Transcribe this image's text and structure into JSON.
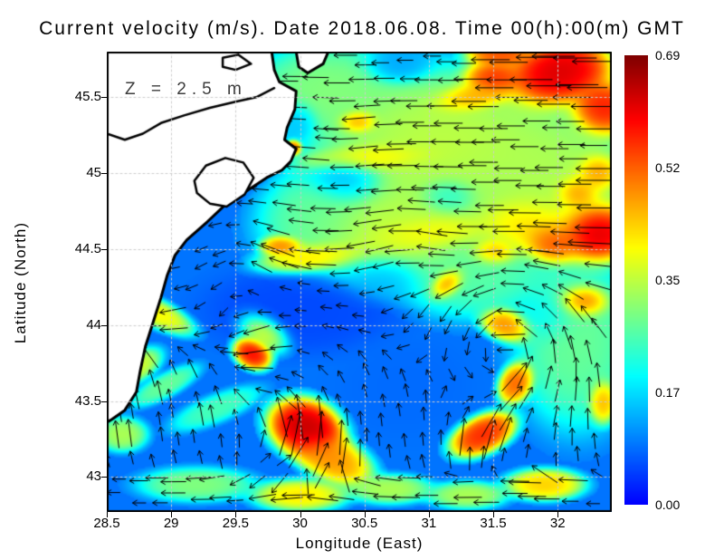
{
  "title": "Current velocity (m/s). Date 2018.06.08. Time 00(h):00(m) GMT",
  "annotation": "Z = 2.5 m",
  "axes": {
    "x": {
      "label": "Longitude (East)",
      "ticks": [
        "28.5",
        "29",
        "29.5",
        "30",
        "30.5",
        "31",
        "31.5",
        "32"
      ],
      "tick_values": [
        28.5,
        29,
        29.5,
        30,
        30.5,
        31,
        31.5,
        32
      ],
      "range": [
        28.5,
        32.42
      ]
    },
    "y": {
      "label": "Latitude (North)",
      "ticks": [
        "45.5",
        "45",
        "44.5",
        "44",
        "43.5",
        "43"
      ],
      "tick_values": [
        45.5,
        45,
        44.5,
        44,
        43.5,
        43
      ],
      "range": [
        42.77,
        45.8
      ]
    }
  },
  "colorbar": {
    "labels": [
      "0.69",
      "0.52",
      "0.35",
      "0.17",
      "0.00"
    ],
    "min": 0.0,
    "max": 0.69,
    "colormap": "jet"
  },
  "colors": {
    "land": "#ffffff",
    "coast": "#000000",
    "arrow": "#000000",
    "grid": "#cdcdcd",
    "frame": "#000000"
  },
  "chart_data": {
    "type": "heatmap",
    "subtype": "vector-field-over-heatmap",
    "title": "Current velocity (m/s). Date 2018.06.08. Time 00(h):00(m) GMT",
    "xlabel": "Longitude (East)",
    "ylabel": "Latitude (North)",
    "xlim": [
      28.5,
      32.42
    ],
    "ylim": [
      42.77,
      45.8
    ],
    "vlim": [
      0.0,
      0.69
    ],
    "grid": {
      "x": [
        29,
        29.5,
        30,
        30.5,
        31,
        31.5,
        32
      ],
      "y": [
        43,
        43.5,
        44,
        44.5,
        45,
        45.5
      ],
      "style": "dotted"
    },
    "base_value": 0.13,
    "hotspot_fields": [
      "lon",
      "lat",
      "rx_px",
      "ry_px",
      "rot_deg",
      "value_norm"
    ],
    "hotspots": [
      [
        31.1,
        45.2,
        130,
        75,
        0,
        0.52
      ],
      [
        30.7,
        44.62,
        110,
        55,
        0,
        0.52
      ],
      [
        31.95,
        44.95,
        95,
        80,
        0,
        0.5
      ],
      [
        30.2,
        45.55,
        75,
        45,
        0,
        0.45
      ],
      [
        32.15,
        43.9,
        60,
        85,
        0,
        0.42
      ],
      [
        31.35,
        44.35,
        75,
        45,
        0,
        0.4
      ],
      [
        30.15,
        44.72,
        55,
        45,
        0,
        0.4
      ],
      [
        31.0,
        44.6,
        70,
        20,
        -5,
        0.62
      ],
      [
        31.5,
        44.48,
        25,
        15,
        0,
        0.75
      ],
      [
        32.0,
        45.65,
        55,
        33,
        -12,
        0.95
      ],
      [
        32.35,
        45.42,
        32,
        28,
        0,
        0.88
      ],
      [
        31.5,
        45.62,
        30,
        18,
        0,
        0.85
      ],
      [
        31.35,
        45.5,
        42,
        15,
        -10,
        0.72
      ],
      [
        32.3,
        45.0,
        24,
        20,
        0,
        0.78
      ],
      [
        31.55,
        45.78,
        33,
        14,
        0,
        0.8
      ],
      [
        32.28,
        44.62,
        42,
        32,
        0,
        1.0
      ],
      [
        31.95,
        44.55,
        30,
        22,
        10,
        0.85
      ],
      [
        32.15,
        44.87,
        24,
        20,
        0,
        0.8
      ],
      [
        31.78,
        44.66,
        55,
        33,
        0,
        0.66
      ],
      [
        30.55,
        45.1,
        70,
        15,
        -4,
        0.62
      ],
      [
        30.45,
        45.34,
        20,
        12,
        0,
        0.72
      ],
      [
        30.1,
        44.45,
        55,
        15,
        -8,
        0.64
      ],
      [
        29.87,
        44.52,
        22,
        11,
        0,
        0.76
      ],
      [
        29.95,
        45.17,
        8,
        8,
        0,
        0.78
      ],
      [
        30.35,
        44.95,
        40,
        28,
        0,
        0.18
      ],
      [
        30.75,
        45.7,
        35,
        18,
        0,
        0.18
      ],
      [
        31.15,
        44.85,
        30,
        20,
        0,
        0.3
      ],
      [
        29.98,
        45.35,
        22,
        22,
        0,
        0.2
      ],
      [
        30.65,
        44.32,
        45,
        25,
        0,
        0.2
      ],
      [
        30.0,
        44.1,
        90,
        40,
        0,
        0.08
      ],
      [
        30.8,
        43.6,
        60,
        45,
        0,
        0.12
      ],
      [
        31.9,
        44.05,
        35,
        28,
        0,
        0.28
      ],
      [
        30.05,
        43.32,
        38,
        28,
        20,
        0.97
      ],
      [
        30.25,
        43.12,
        42,
        22,
        25,
        0.72
      ],
      [
        29.63,
        43.82,
        20,
        15,
        30,
        0.9
      ],
      [
        29.72,
        43.96,
        28,
        18,
        30,
        0.62
      ],
      [
        28.88,
        44.08,
        40,
        13,
        25,
        0.6
      ],
      [
        28.66,
        43.62,
        7,
        7,
        0,
        0.85
      ],
      [
        28.72,
        43.72,
        28,
        14,
        -30,
        0.55
      ],
      [
        31.42,
        43.28,
        34,
        18,
        -25,
        0.85
      ],
      [
        31.68,
        43.62,
        22,
        16,
        -60,
        0.78
      ],
      [
        31.62,
        44.0,
        16,
        28,
        -75,
        0.74
      ],
      [
        31.15,
        44.28,
        20,
        13,
        -35,
        0.82
      ],
      [
        32.2,
        44.15,
        26,
        17,
        0,
        0.85
      ],
      [
        32.35,
        43.5,
        14,
        22,
        0,
        0.7
      ],
      [
        29.2,
        42.95,
        55,
        16,
        0,
        0.45
      ],
      [
        30.0,
        42.88,
        45,
        15,
        0,
        0.62
      ],
      [
        30.7,
        42.92,
        40,
        14,
        0,
        0.5
      ],
      [
        31.9,
        42.95,
        38,
        15,
        0,
        0.65
      ],
      [
        31.3,
        42.88,
        38,
        13,
        0,
        0.5
      ],
      [
        28.62,
        43.28,
        24,
        16,
        0,
        0.5
      ],
      [
        29.35,
        43.45,
        45,
        13,
        -22,
        0.38
      ],
      [
        28.95,
        43.6,
        36,
        11,
        -28,
        0.42
      ]
    ],
    "flow": {
      "vortex_fields": [
        "lon",
        "lat",
        "radius_deg",
        "strength_ccw"
      ],
      "vortices": [
        [
          31.62,
          43.85,
          0.5,
          1.6
        ],
        [
          30.0,
          43.4,
          0.45,
          1.3
        ],
        [
          29.5,
          44.6,
          0.4,
          0.7
        ],
        [
          30.8,
          44.6,
          0.35,
          0.5
        ],
        [
          30.3,
          45.25,
          0.3,
          -0.6
        ]
      ],
      "west_drift_north": 1.5,
      "north_drift_south": 1.4,
      "west_drift_bottom": 1.1
    },
    "coastline": {
      "main_land": [
        [
          28.5,
          45.8
        ],
        [
          29.78,
          45.8
        ],
        [
          29.8,
          45.68
        ],
        [
          29.84,
          45.6
        ],
        [
          29.97,
          45.54
        ],
        [
          29.96,
          45.42
        ],
        [
          29.9,
          45.3
        ],
        [
          29.88,
          45.22
        ],
        [
          29.97,
          45.16
        ],
        [
          29.93,
          45.08
        ],
        [
          29.86,
          45.02
        ],
        [
          29.74,
          44.97
        ],
        [
          29.58,
          44.88
        ],
        [
          29.43,
          44.8
        ],
        [
          29.28,
          44.68
        ],
        [
          29.12,
          44.56
        ],
        [
          29.03,
          44.46
        ],
        [
          28.97,
          44.33
        ],
        [
          28.92,
          44.18
        ],
        [
          28.86,
          44.02
        ],
        [
          28.8,
          43.86
        ],
        [
          28.76,
          43.7
        ],
        [
          28.73,
          43.56
        ],
        [
          28.64,
          43.44
        ],
        [
          28.54,
          43.38
        ],
        [
          28.5,
          43.36
        ]
      ],
      "top_patch": [
        [
          29.97,
          45.8
        ],
        [
          30.22,
          45.8
        ],
        [
          30.18,
          45.72
        ],
        [
          30.06,
          45.66
        ],
        [
          29.99,
          45.7
        ]
      ],
      "lagoon": [
        [
          29.18,
          44.95
        ],
        [
          29.27,
          45.05
        ],
        [
          29.42,
          45.1
        ],
        [
          29.56,
          45.07
        ],
        [
          29.64,
          44.97
        ],
        [
          29.57,
          44.86
        ],
        [
          29.43,
          44.78
        ],
        [
          29.3,
          44.8
        ],
        [
          29.2,
          44.87
        ]
      ],
      "lake": [
        [
          29.4,
          45.76
        ],
        [
          29.52,
          45.78
        ],
        [
          29.62,
          45.72
        ],
        [
          29.5,
          45.68
        ],
        [
          29.4,
          45.7
        ]
      ],
      "river": [
        [
          28.5,
          45.26
        ],
        [
          28.64,
          45.22
        ],
        [
          28.78,
          45.26
        ],
        [
          28.92,
          45.33
        ],
        [
          29.1,
          45.38
        ],
        [
          29.3,
          45.43
        ],
        [
          29.5,
          45.47
        ],
        [
          29.66,
          45.5
        ],
        [
          29.8,
          45.56
        ]
      ]
    }
  }
}
